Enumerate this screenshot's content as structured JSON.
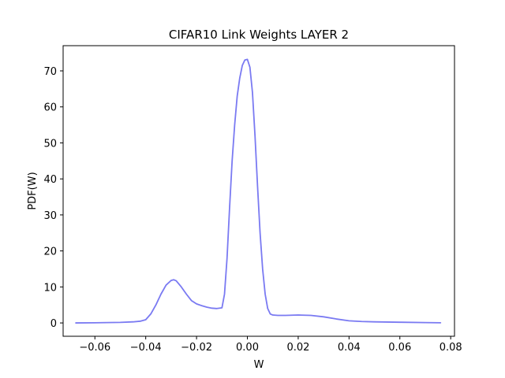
{
  "chart_data": {
    "type": "line",
    "title": "CIFAR10 Link Weights LAYER 2",
    "xlabel": "W",
    "ylabel": "PDF(W)",
    "xlim": [
      -0.0725,
      0.0815
    ],
    "ylim": [
      -3.7,
      77.0
    ],
    "xticks": [
      -0.06,
      -0.04,
      -0.02,
      0.0,
      0.02,
      0.04,
      0.06,
      0.08
    ],
    "xtick_labels": [
      "−0.06",
      "−0.04",
      "−0.02",
      "0.00",
      "0.02",
      "0.04",
      "0.06",
      "0.08"
    ],
    "yticks": [
      0,
      10,
      20,
      30,
      40,
      50,
      60,
      70
    ],
    "ytick_labels": [
      "0",
      "10",
      "20",
      "30",
      "40",
      "50",
      "60",
      "70"
    ],
    "grid": false,
    "series": [
      {
        "color": "#7a7af2",
        "x": [
          -0.0675,
          -0.06,
          -0.05,
          -0.045,
          -0.042,
          -0.04,
          -0.038,
          -0.036,
          -0.034,
          -0.032,
          -0.03,
          -0.029,
          -0.028,
          -0.026,
          -0.024,
          -0.022,
          -0.02,
          -0.018,
          -0.016,
          -0.014,
          -0.012,
          -0.01,
          -0.009,
          -0.008,
          -0.007,
          -0.006,
          -0.005,
          -0.004,
          -0.003,
          -0.002,
          -0.001,
          0.0,
          0.001,
          0.002,
          0.003,
          0.004,
          0.005,
          0.006,
          0.007,
          0.008,
          0.009,
          0.01,
          0.012,
          0.015,
          0.02,
          0.025,
          0.03,
          0.035,
          0.04,
          0.045,
          0.05,
          0.06,
          0.07,
          0.076
        ],
        "y": [
          0.0,
          0.05,
          0.15,
          0.3,
          0.5,
          0.9,
          2.5,
          5.0,
          8.0,
          10.5,
          11.8,
          12.0,
          11.7,
          10.0,
          8.0,
          6.2,
          5.3,
          4.8,
          4.4,
          4.1,
          4.0,
          4.2,
          8.0,
          18.0,
          32.0,
          45.0,
          55.0,
          63.0,
          68.0,
          71.5,
          73.0,
          73.2,
          71.0,
          64.0,
          52.0,
          38.0,
          25.0,
          15.0,
          8.0,
          4.0,
          2.5,
          2.2,
          2.1,
          2.1,
          2.2,
          2.1,
          1.7,
          1.1,
          0.6,
          0.4,
          0.3,
          0.2,
          0.1,
          0.05
        ]
      }
    ]
  }
}
